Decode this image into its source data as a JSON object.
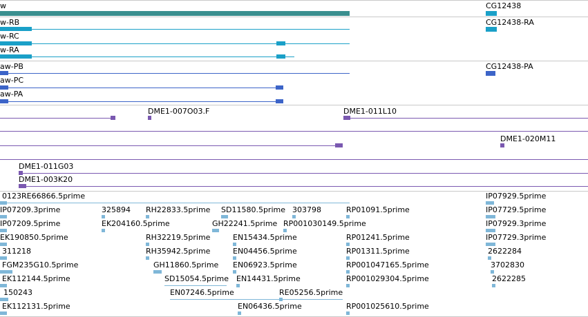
{
  "view": {
    "colors": {
      "gene": "#3a8f8f",
      "transcript_a": "#1aa0c8",
      "transcript_b": "#3c64c8",
      "clone": "#7a58b0",
      "est": "#7fb7d8",
      "separator": "#c8c8c8"
    }
  },
  "genes": {
    "g1_label": "w",
    "g2_label": "CG12438"
  },
  "transcripts": {
    "rb": "w-RB",
    "rc": "w-RC",
    "ra": "w-RA",
    "cg_ra": "CG12438-RA",
    "pb": "aw-PB",
    "pc": "aw-PC",
    "pa": "aw-PA",
    "cg_pa": "CG12438-PA"
  },
  "clones": {
    "c1": "DME1-007O03.F",
    "c2": "DME1-011L10",
    "c3": "DME1-020M11",
    "c4": "DME1-011G03",
    "c5": "DME1-003K20"
  },
  "ests": [
    "0123RE66866.5prime",
    "IP07929.5prime",
    "IP07209.3prime",
    "325894",
    "RH22833.5prime",
    "SD11580.5prime",
    "303798",
    "RP01091.5prime",
    "IP07729.5prime",
    "IP07209.5prime",
    "EK204160.5prime",
    "GH22241.5prime",
    "RP001030149.5prime",
    "IP07929.3prime",
    "EK190850.5prime",
    "RH32219.5prime",
    "EN15434.5prime",
    "RP01241.5prime",
    "IP07729.3prime",
    "311218",
    "RH35942.5prime",
    "EN04456.5prime",
    "RP01311.5prime",
    "2622284",
    "FGM235G10.5prime",
    "GH11860.5prime",
    "EN06923.5prime",
    "RP001047165.5prime",
    "3702830",
    "EK112144.5prime",
    "SD15054.5prime",
    "EN14431.5prime",
    "RP001029304.5prime",
    "2622285",
    "150243",
    "EN07246.5prime",
    "RE05256.5prime",
    "EK112131.5prime",
    "EN06436.5prime",
    "RP001025610.5prime"
  ]
}
